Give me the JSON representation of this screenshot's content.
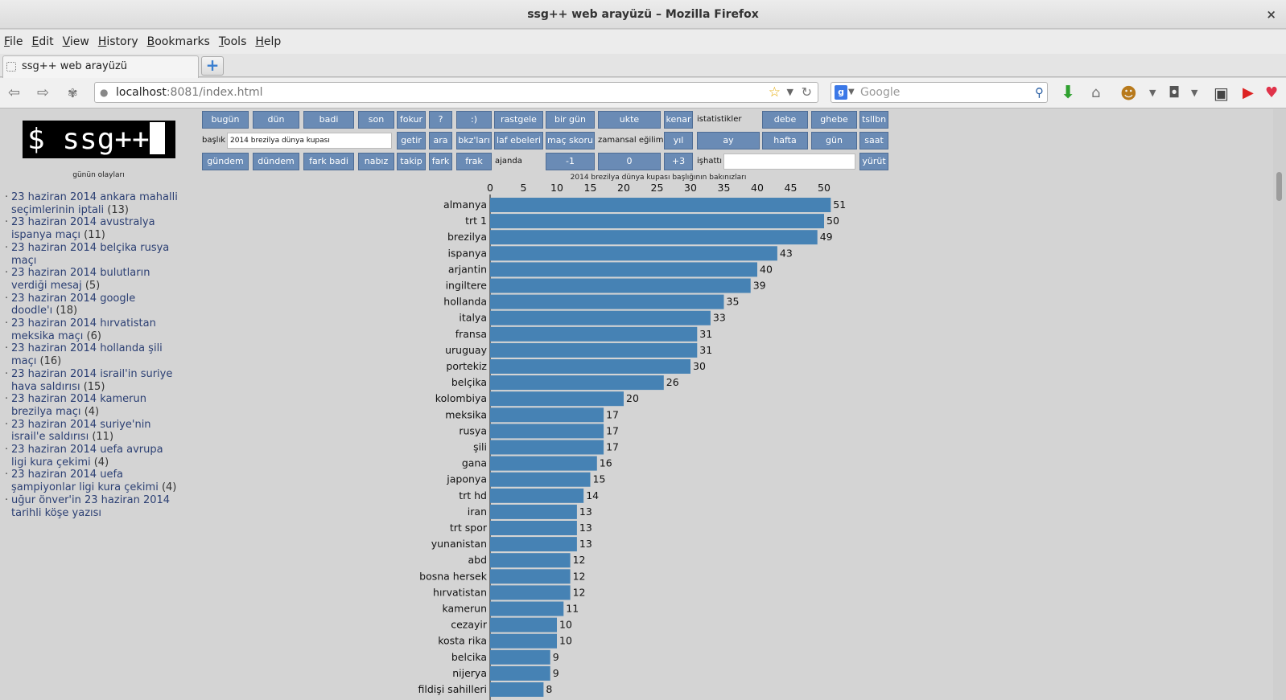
{
  "window": {
    "title": "ssg++ web arayüzü – Mozilla Firefox",
    "close": "×"
  },
  "menu": [
    "File",
    "Edit",
    "View",
    "History",
    "Bookmarks",
    "Tools",
    "Help"
  ],
  "tab": {
    "title": "ssg++ web arayüzü",
    "new_tab": "+"
  },
  "nav": {
    "url_host": "localhost",
    "url_rest": ":8081/index.html",
    "search_placeholder": "Google"
  },
  "sidebar": {
    "logo_text": "$ ssg++",
    "events_title": "günün olayları",
    "events": [
      {
        "text": "23 haziran 2014 ankara mahalli seçimlerinin iptali",
        "count": "(13)"
      },
      {
        "text": "23 haziran 2014 avustralya ispanya maçı",
        "count": "(11)"
      },
      {
        "text": "23 haziran 2014 belçika rusya maçı",
        "count": ""
      },
      {
        "text": "23 haziran 2014 bulutların verdiği mesaj",
        "count": "(5)"
      },
      {
        "text": "23 haziran 2014 google doodle'ı",
        "count": "(18)"
      },
      {
        "text": "23 haziran 2014 hırvatistan meksika maçı",
        "count": "(6)"
      },
      {
        "text": "23 haziran 2014 hollanda şili maçı",
        "count": "(16)"
      },
      {
        "text": "23 haziran 2014 israil'in suriye hava saldırısı",
        "count": "(15)"
      },
      {
        "text": "23 haziran 2014 kamerun brezilya maçı",
        "count": "(4)"
      },
      {
        "text": "23 haziran 2014 suriye'nin israil'e saldırısı",
        "count": "(11)"
      },
      {
        "text": "23 haziran 2014 uefa avrupa ligi kura çekimi",
        "count": "(4)"
      },
      {
        "text": "23 haziran 2014 uefa şampiyonlar ligi kura çekimi",
        "count": "(4)"
      },
      {
        "text": "uğur önver'in 23 haziran 2014 tarihli köşe yazısı",
        "count": ""
      }
    ]
  },
  "toolbar": {
    "row1": {
      "bugun": "bugün",
      "dun": "dün",
      "badi": "badi",
      "son": "son",
      "fokur": "fokur",
      "soru": "?",
      "gulen": ":)",
      "rastgele": "rastgele",
      "bir_gun": "bir gün",
      "ukte": "ukte",
      "kenar": "kenar",
      "istatistikler": "istatistikler",
      "debe": "debe",
      "ghebe": "ghebe",
      "tsllbn": "tsllbn"
    },
    "row2": {
      "baslik_label": "başlık",
      "baslik_value": "2014 brezilya dünya kupası",
      "getir": "getir",
      "ara": "ara",
      "bkzlari": "bkz'ları",
      "laf_ebeleri": "laf ebeleri",
      "mac_skoru": "maç skoru",
      "zamansal_egilim": "zamansal eğilim",
      "yil": "yıl",
      "ay": "ay",
      "hafta": "hafta",
      "gun": "gün",
      "saat": "saat"
    },
    "row3": {
      "gundem": "gündem",
      "dundem": "dündem",
      "fark_badi": "fark badi",
      "nabiz": "nabız",
      "takip": "takip",
      "fark": "fark",
      "frak": "frak",
      "ajanda": "ajanda",
      "minus1": "-1",
      "zero": "0",
      "plus3": "+3",
      "ishatti": "işhattı",
      "ishatti_value": "",
      "yurut": "yürüt"
    }
  },
  "chart_data": {
    "type": "bar",
    "orientation": "horizontal",
    "title": "2014 brezilya dünya kupası başlığının bakınızları",
    "xlim": [
      0,
      50
    ],
    "xticks": [
      0,
      5,
      10,
      15,
      20,
      25,
      30,
      35,
      40,
      45,
      50
    ],
    "axis_position": "top",
    "bar_color": "#4682b4",
    "categories": [
      "almanya",
      "trt 1",
      "brezilya",
      "ispanya",
      "arjantin",
      "ingiltere",
      "hollanda",
      "italya",
      "fransa",
      "uruguay",
      "portekiz",
      "belçika",
      "kolombiya",
      "meksika",
      "rusya",
      "şili",
      "gana",
      "japonya",
      "trt hd",
      "iran",
      "trt spor",
      "yunanistan",
      "abd",
      "bosna hersek",
      "hırvatistan",
      "kamerun",
      "cezayir",
      "kosta rika",
      "belcika",
      "nijerya",
      "fildişi sahilleri"
    ],
    "values": [
      51,
      50,
      49,
      43,
      40,
      39,
      35,
      33,
      31,
      31,
      30,
      26,
      20,
      17,
      17,
      17,
      16,
      15,
      14,
      13,
      13,
      13,
      12,
      12,
      12,
      11,
      10,
      10,
      9,
      9,
      8
    ]
  }
}
